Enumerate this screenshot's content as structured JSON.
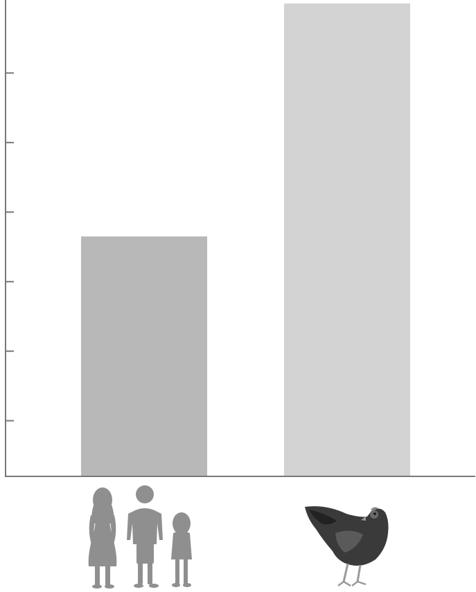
{
  "chart_data": {
    "type": "bar",
    "categories": [
      "family-icon",
      "chicken-icon"
    ],
    "values": [
      3.45,
      6.8
    ],
    "ylim": [
      0,
      6.8
    ],
    "yticks": [
      0.8,
      1.8,
      2.8,
      3.8,
      4.8,
      5.8
    ],
    "grid": false,
    "legend": "none",
    "colors": {
      "bar_1": "#b8b8b8",
      "bar_2": "#d3d3d3",
      "axis": "#777777",
      "icon_family": "#8f8f8f",
      "icon_chicken": "#3a3a3a"
    }
  }
}
